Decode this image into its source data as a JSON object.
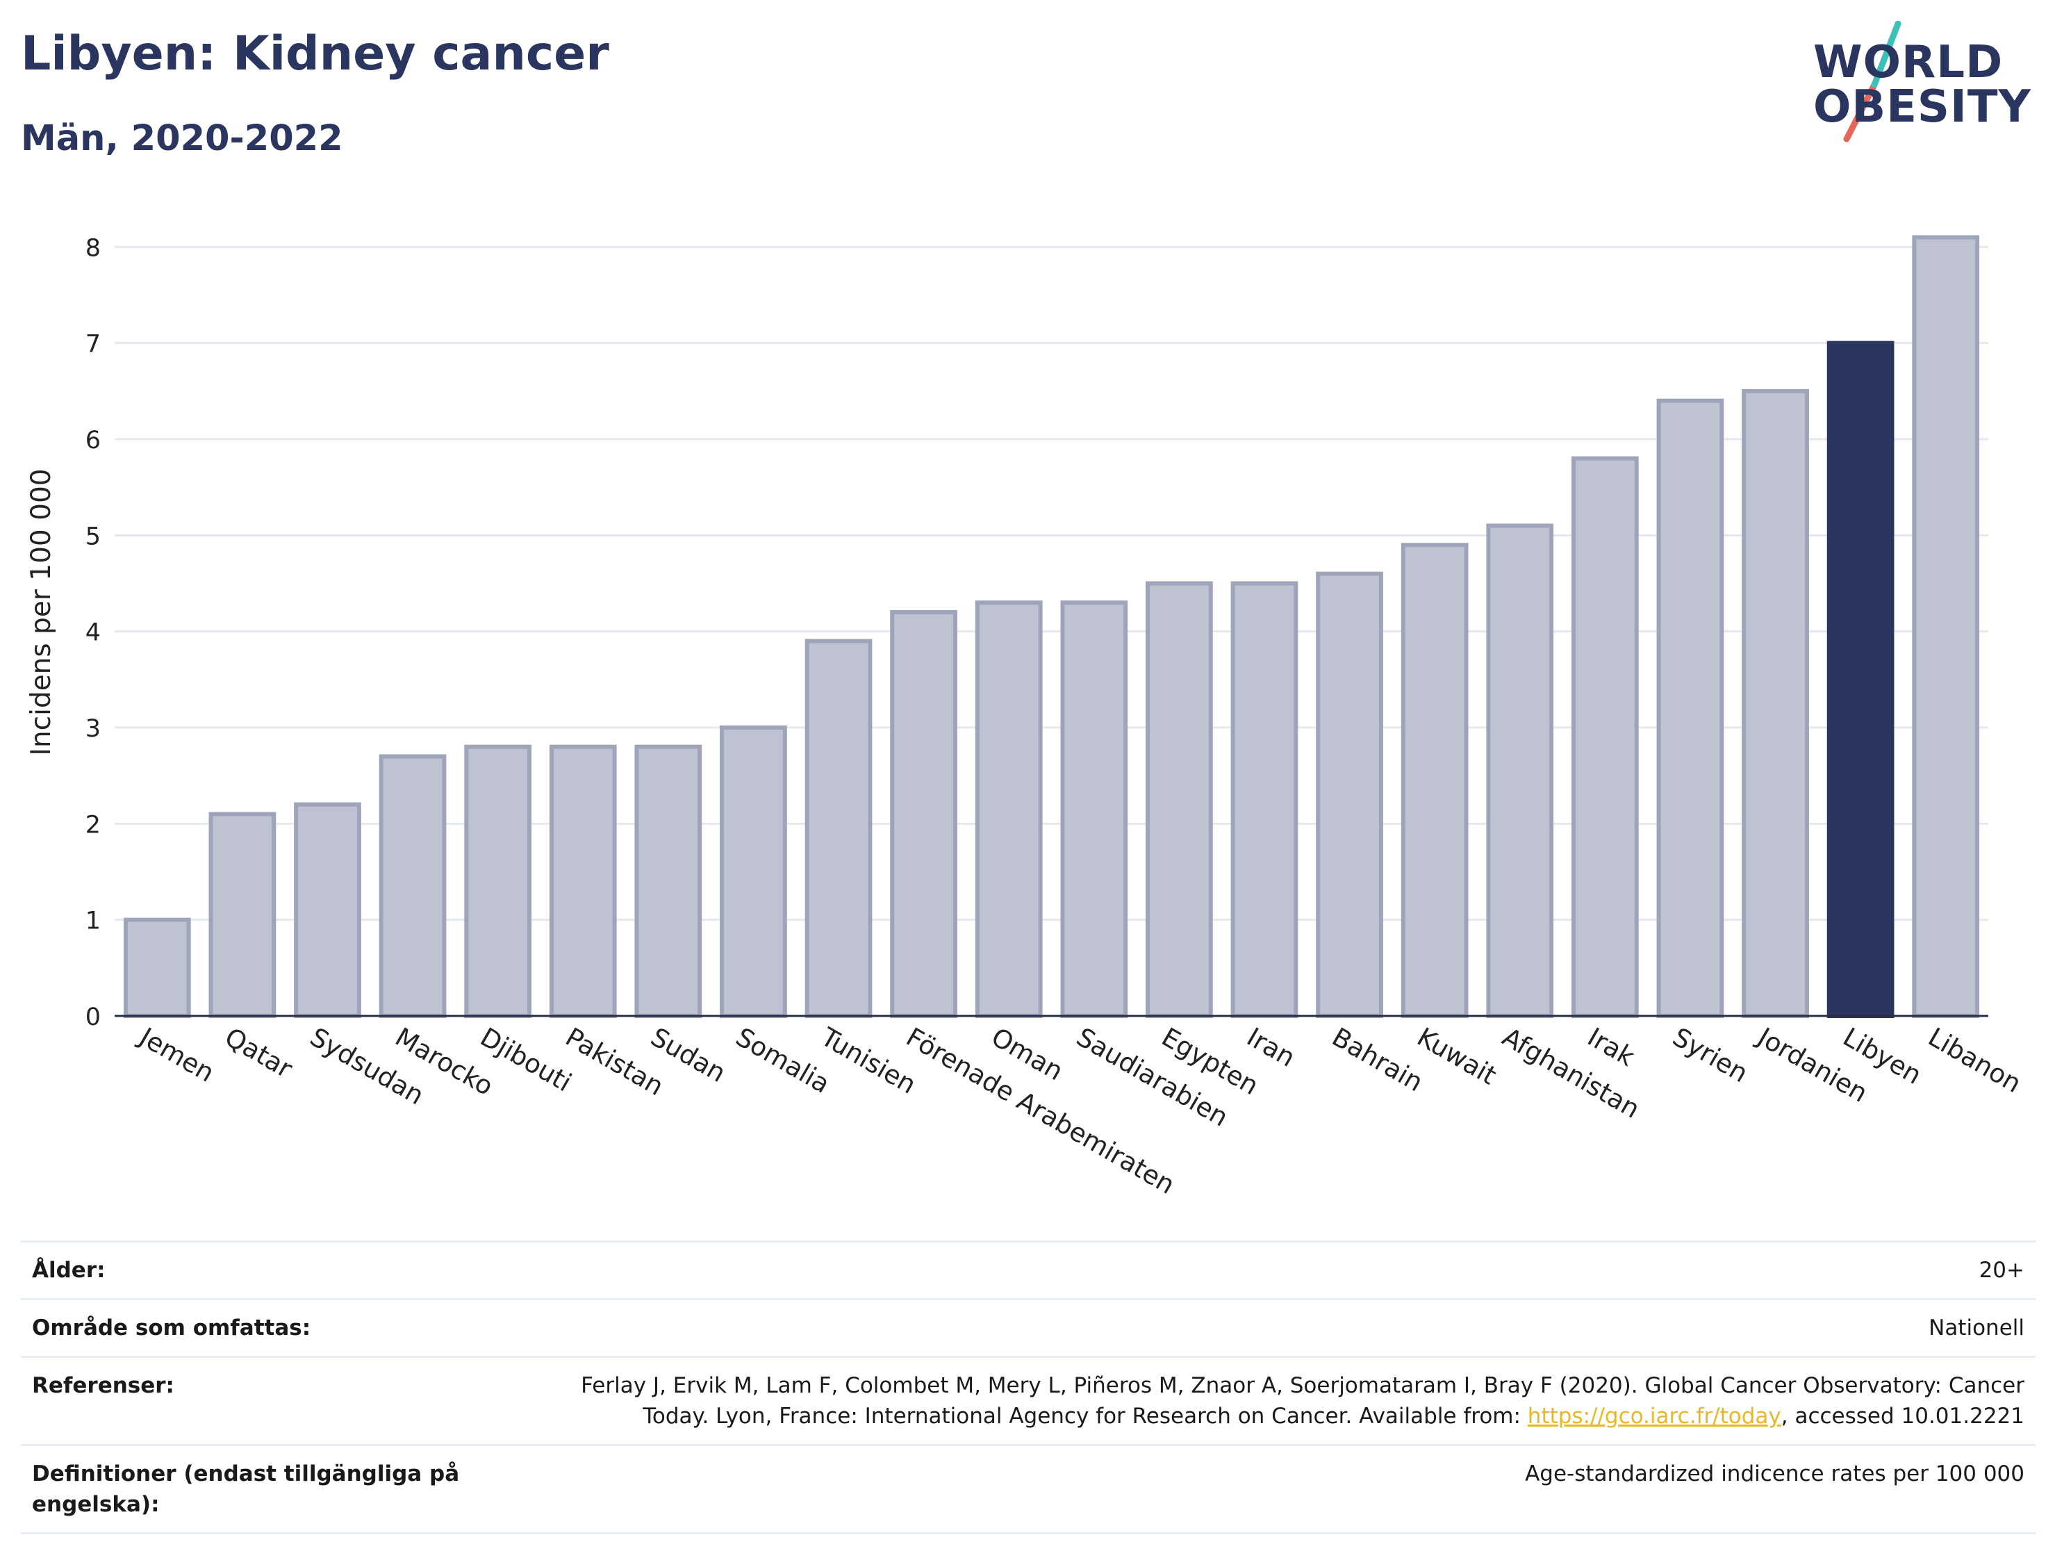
{
  "header": {
    "title": "Libyen: Kidney cancer",
    "subtitle": "Män, 2020-2022"
  },
  "logo": {
    "line1": "WORLD",
    "line2": "OBESITY"
  },
  "colors": {
    "bar": "#bfc3d1",
    "bar_border": "#9ea4ba",
    "highlight": "#2a3560",
    "axis": "#2a2f45",
    "grid": "#e6e8ee"
  },
  "chart_data": {
    "type": "bar",
    "categories": [
      "Jemen",
      "Qatar",
      "Sydsudan",
      "Marocko",
      "Djibouti",
      "Pakistan",
      "Sudan",
      "Somalia",
      "Tunisien",
      "Förenade Arabemiraten",
      "Oman",
      "Saudiarabien",
      "Egypten",
      "Iran",
      "Bahrain",
      "Kuwait",
      "Afghanistan",
      "Irak",
      "Syrien",
      "Jordanien",
      "Libyen",
      "Libanon"
    ],
    "values": [
      1.0,
      2.1,
      2.2,
      2.7,
      2.8,
      2.8,
      2.8,
      3.0,
      3.9,
      4.2,
      4.3,
      4.3,
      4.5,
      4.5,
      4.6,
      4.9,
      5.1,
      5.8,
      6.4,
      6.5,
      7.0,
      8.1
    ],
    "highlight": "Libyen",
    "ylabel": "Incidens per 100 000",
    "xlabel": "",
    "ylim": [
      0,
      8.4
    ],
    "yticks": [
      0,
      1,
      2,
      3,
      4,
      5,
      6,
      7,
      8
    ],
    "grid": true
  },
  "meta": {
    "age_label": "Ålder:",
    "age_value": "20+",
    "area_label": "Område som omfattas:",
    "area_value": "Nationell",
    "ref_label": "Referenser:",
    "ref_text_1": "Ferlay J, Ervik M, Lam F, Colombet M, Mery L, Piñeros M, Znaor A, Soerjomataram I, Bray F (2020). Global Cancer Observatory: Cancer Today. Lyon, France: International Agency for Research on Cancer. Available from: ",
    "ref_link": "https://gco.iarc.fr/today",
    "ref_text_2": ", accessed 10.01.2221",
    "def_label": "Definitioner (endast tillgängliga på engelska):",
    "def_value": "Age-standardized indicence rates per 100 000"
  }
}
